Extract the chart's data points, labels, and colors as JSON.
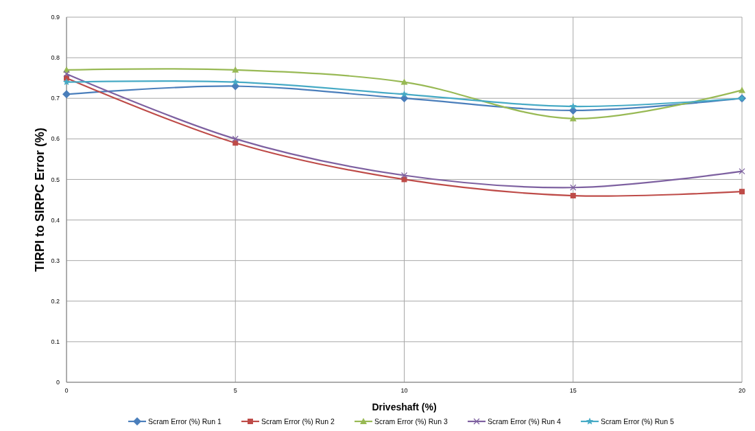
{
  "chart_data": {
    "type": "line",
    "xlabel": "Driveshaft (%)",
    "ylabel": "TIRPI to SIRPC Error (%)",
    "x": [
      0,
      5,
      10,
      15,
      20
    ],
    "xlim": [
      0,
      20
    ],
    "xticks": [
      0,
      5,
      10,
      15,
      20
    ],
    "ylim": [
      0,
      0.9
    ],
    "yticks": [
      0,
      0.1,
      0.2,
      0.3,
      0.4,
      0.5,
      0.6,
      0.7,
      0.8,
      0.9
    ],
    "grid": true,
    "legend": "bottom",
    "series": [
      {
        "name": "Scram Error (%) Run 1",
        "color": "#4a7ebb",
        "marker": "diamond",
        "values": [
          0.71,
          0.73,
          0.7,
          0.67,
          0.7
        ]
      },
      {
        "name": "Scram Error (%) Run 2",
        "color": "#be4b48",
        "marker": "square",
        "values": [
          0.75,
          0.59,
          0.5,
          0.46,
          0.47
        ]
      },
      {
        "name": "Scram Error (%) Run 3",
        "color": "#98b954",
        "marker": "triangle",
        "values": [
          0.77,
          0.77,
          0.74,
          0.65,
          0.72
        ]
      },
      {
        "name": "Scram Error (%) Run 4",
        "color": "#7d60a0",
        "marker": "cross",
        "values": [
          0.76,
          0.6,
          0.51,
          0.48,
          0.52
        ]
      },
      {
        "name": "Scram Error (%) Run 5",
        "color": "#46aac5",
        "marker": "star",
        "values": [
          0.74,
          0.74,
          0.71,
          0.68,
          0.7
        ]
      }
    ]
  }
}
